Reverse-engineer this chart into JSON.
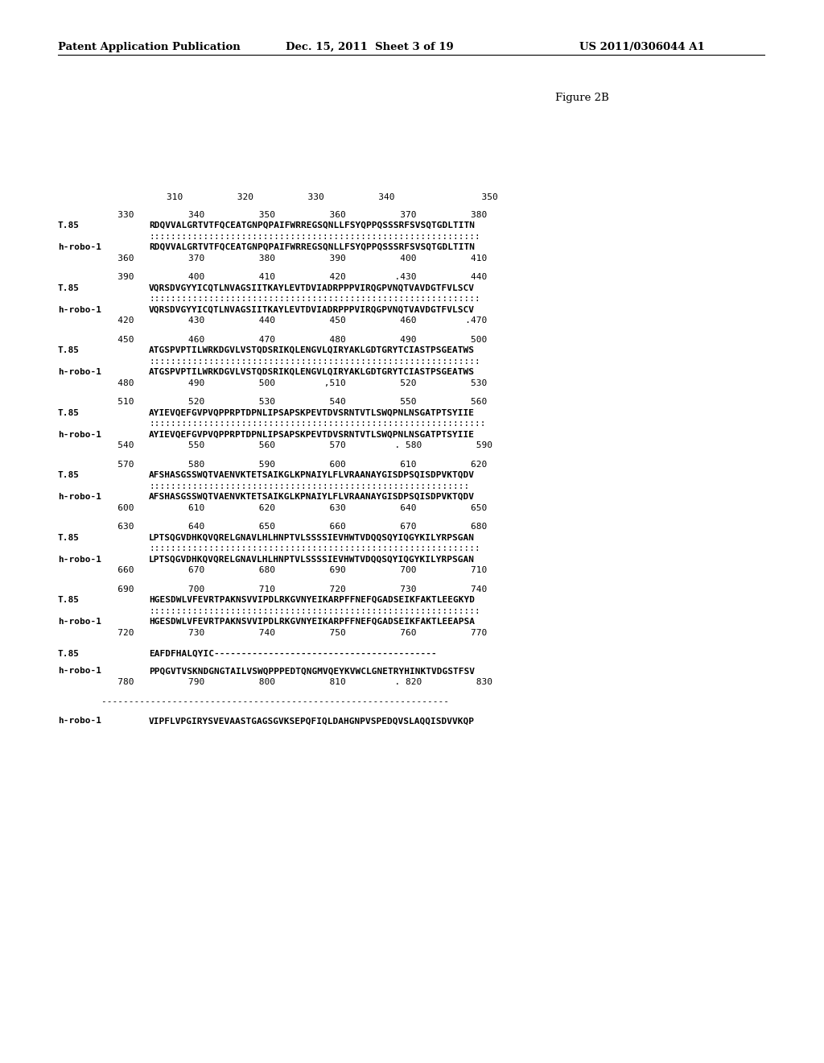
{
  "header_left": "Patent Application Publication",
  "header_center": "Dec. 15, 2011  Sheet 3 of 19",
  "header_right": "US 2011/0306044 A1",
  "figure_label": "Figure 2B",
  "bg_color": "#ffffff",
  "text_color": "#000000",
  "font_size": 8.0,
  "label_font_size": 8.0,
  "header_font_size": 9.5,
  "figure_label_font_size": 9.5,
  "ruler_top": "                    310          320          330          340                350",
  "blocks": [
    {
      "top_nums": "           330          340          350          360          370          380",
      "t85_seq": "RDQVVALGRTVTFQCEATGNPQPAIFWRREGSQNLLFSYQPPQSSSRFSVSQTGDLTITN",
      "dots": ":::::::::::::::::::::::::::::::::::::::::::::::::::::::::::::",
      "robo_seq": "RDQVVALGRTVTFQCEATGNPQPAIFWRREGSQNLLFSYQPPQSSSRFSVSQTGDLTITN",
      "bot_nums": "           360          370          380          390          400          410"
    },
    {
      "top_nums": "           390          400          410          420         .430          440",
      "t85_seq": "VQRSDVGYYICQTLNVAGSIITKAYLEVTDVIADRPPPVIRQGPVNQTVAVDGTFVLSCV",
      "dots": ":::::::::::::::::::::::::::::::::::::::::::::::::::::::::::::",
      "robo_seq": "VQRSDVGYYICQTLNVAGSIITKAYLEVTDVIADRPPPVIRQGPVNQTVAVDGTFVLSCV",
      "bot_nums": "           420          430          440          450          460         .470"
    },
    {
      "top_nums": "           450          460          470          480          490          500",
      "t85_seq": "ATGSPVPTILWRKDGVLVSTQDSRIKQLENGVLQIRYAKLGDTGRYTCIASTPSGEATWS",
      "dots": ":::::::::::::::::::::::::::::::::::::::::::::::::::::::::::::",
      "robo_seq": "ATGSPVPTILWRKDGVLVSTQDSRIKQLENGVLQIRYAKLGDTGRYTCIASTPSGEATWS",
      "bot_nums": "           480          490          500         ,510          520          530"
    },
    {
      "top_nums": "           510          520          530          540          550          560",
      "t85_seq": "AYIEVQEFGVPVQPPRPTDPNLIPSAPSKPEVTDVSRNTVTLSWQPNLNSGATPTSYIIE",
      "dots": "::::::::::::::::::::::::::::::::::::::::::::::::::::::::::::::",
      "robo_seq": "AYIEVQEFGVPVQPPRPTDPNLIPSAPSKPEVTDVSRNTVTLSWQPNLNSGATPTSYIIE",
      "bot_nums": "           540          550          560          570         . 580          590"
    },
    {
      "top_nums": "           570          580          590          600          610          620",
      "t85_seq": "AFSHASGSSWQTVAENVKTETSAIKGLKPNAIYLFLVRAANAYGISDPSQISDPVKTQDV",
      "dots": ":::::::::::::::::::::::::::::::::::::::::::::::::::::::::::",
      "robo_seq": "AFSHASGSSWQTVAENVKTETSAIKGLKPNAIYLFLVRAANAYGISDPSQISDPVKTQDV",
      "bot_nums": "           600          610          620          630          640          650"
    },
    {
      "top_nums": "           630          640          650          660          670          680",
      "t85_seq": "LPTSQGVDHKQVQRELGNAVLHLHNPTVLSSSSIEVHWTVDQQSQYIQGYKILYRPSGAN",
      "dots": ":::::::::::::::::::::::::::::::::::::::::::::::::::::::::::::",
      "robo_seq": "LPTSQGVDHKQVQRELGNAVLHLHNPTVLSSSSIEVHWTVDQQSQYIQGYKILYRPSGAN",
      "bot_nums": "           660          670          680          690          700          710"
    },
    {
      "top_nums": "           690          700          710          720          730          740",
      "t85_seq": "HGESDWLVFEVRTPAKNSVVIPDLRKGVNYEIKARPFFNEFQGADSEIKFAKTLEEGKYD",
      "dots": ":::::::::::::::::::::::::::::::::::::::::::::::::::::::::::::",
      "robo_seq": "HGESDWLVFEVRTPAKNSVVIPDLRKGVNYEIKARPFFNEFQGADSEIKFAKTLEEAPSA",
      "bot_nums": "           720          730          740          750          760          770"
    }
  ],
  "t85_tail_seq": "EAFDFHALQYIC-----------------------------------------",
  "robo_tail_seq": "PPQGVTVSKNDGNGTAILVSWQPPPEDTQNGMVQEYKVWCLGNETRYHINKTVDGSTFSV",
  "robo_tail_nums": "           780          790          800          810         . 820          830",
  "divider": "        ----------------------------------------------------------------",
  "robo_last_seq": "VIPFLVPGIRYSVEVAASTGAGSGVKSEPQFIQLDAHGNPVSPEDQVSLAQQISDVVKQP"
}
